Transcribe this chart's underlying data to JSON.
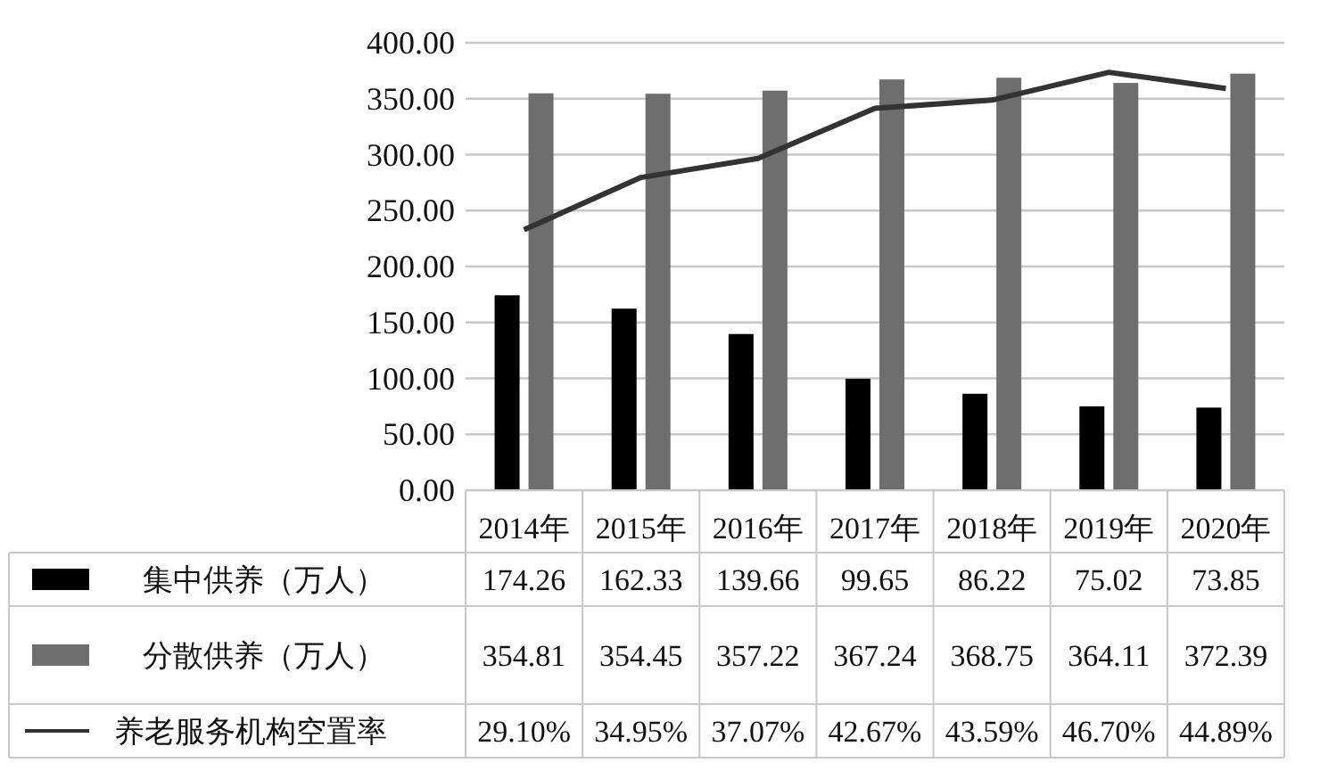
{
  "chart_data": {
    "type": "bar",
    "categories": [
      "2014年",
      "2015年",
      "2016年",
      "2017年",
      "2018年",
      "2019年",
      "2020年"
    ],
    "ylim": [
      0,
      400
    ],
    "yticks": [
      {
        "value": 0,
        "label": "0.00"
      },
      {
        "value": 50,
        "label": "50.00"
      },
      {
        "value": 100,
        "label": "100.00"
      },
      {
        "value": 150,
        "label": "150.00"
      },
      {
        "value": 200,
        "label": "200.00"
      },
      {
        "value": 250,
        "label": "250.00"
      },
      {
        "value": 300,
        "label": "300.00"
      },
      {
        "value": 350,
        "label": "350.00"
      },
      {
        "value": 400,
        "label": "400.00"
      }
    ],
    "y2lim": [
      0,
      50
    ],
    "grid": "y",
    "legend": "bottom",
    "series": [
      {
        "name": "集中供养（万人）",
        "color": "#000000",
        "values": [
          174.26,
          162.33,
          139.66,
          99.65,
          86.22,
          75.02,
          73.85
        ],
        "value_labels": [
          "174.26",
          "162.33",
          "139.66",
          "99.65",
          "86.22",
          "75.02",
          "73.85"
        ]
      },
      {
        "name": "分散供养（万人）",
        "color": "#6e6e6e",
        "values": [
          354.81,
          354.45,
          357.22,
          367.24,
          368.75,
          364.11,
          372.39
        ],
        "value_labels": [
          "354.81",
          "354.45",
          "357.22",
          "367.24",
          "368.75",
          "364.11",
          "372.39"
        ]
      },
      {
        "name": "养老服务机构空置率",
        "type": "line",
        "axis": "y2",
        "color": "#333333",
        "values": [
          29.1,
          34.95,
          37.07,
          42.67,
          43.59,
          46.7,
          44.89
        ],
        "value_labels": [
          "29.10%",
          "34.95%",
          "37.07%",
          "42.67%",
          "43.59%",
          "46.70%",
          "44.89%"
        ]
      }
    ]
  }
}
